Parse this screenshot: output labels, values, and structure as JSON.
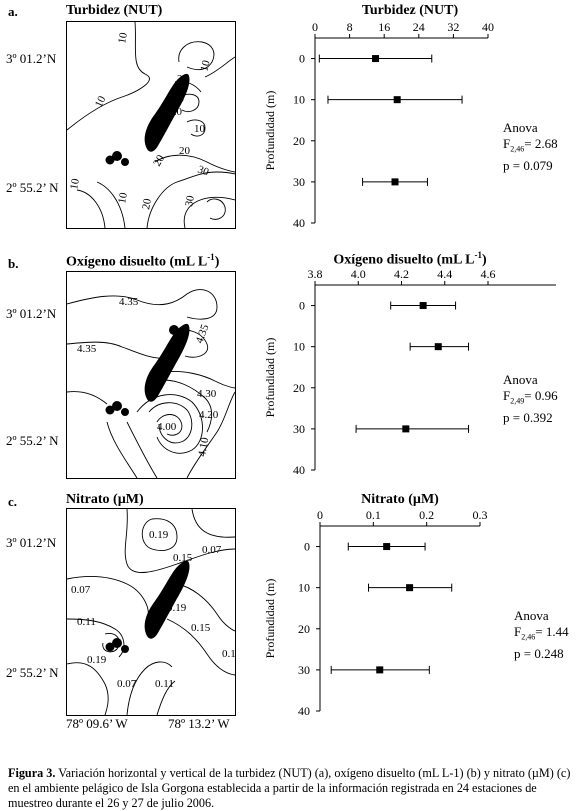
{
  "panels": [
    {
      "label": "a.",
      "map_title": "Turbidez (NUT)",
      "lat_north": "3º 01.2’N",
      "lat_south": "2º 55.2’ N",
      "contour_labels": [
        "10",
        "10",
        "10",
        "10",
        "20",
        "30",
        "20",
        "10",
        "20",
        "20",
        "30",
        "10",
        "20",
        "30"
      ],
      "chart_title": "Turbidez (NUT)",
      "ylabel": "Profundidad (m)",
      "anova": {
        "title": "Anova",
        "f_prefix": "F",
        "f_sub": "2,46",
        "f_value": "= 2.68",
        "p": "p = 0.079"
      }
    },
    {
      "label": "b.",
      "map_title": "Oxígeno disuelto (mL L",
      "map_title_sup": "-1",
      "map_title_end": ")",
      "lat_north": "3º 01.2’N",
      "lat_south": "2º 55.2’ N",
      "contour_labels": [
        "4.35",
        "4.35",
        "4.35",
        "4.30",
        "4.20",
        "4.00",
        "4.10"
      ],
      "chart_title": "Oxígeno disuelto (mL L",
      "chart_title_sup": "-1",
      "chart_title_end": ")",
      "ylabel": "Profundidad (m)",
      "anova": {
        "title": "Anova",
        "f_prefix": "F",
        "f_sub": "2,49",
        "f_value": "= 0.96",
        "p": "p = 0.392"
      }
    },
    {
      "label": "c.",
      "map_title": "Nitrato (µM)",
      "lat_north": "3º 01.2’N",
      "lat_south": "2º 55.2’ N",
      "lon_west": "78º 09.6’ W",
      "lon_east": "78º 13.2’ W",
      "contour_labels": [
        "0.19",
        "0.15",
        "0.07",
        "0.07",
        "0.19",
        "0.11",
        "0.15",
        "0.19",
        "0.07",
        "0.11",
        "0.19"
      ],
      "chart_title": "Nitrato (µM)",
      "ylabel": "Profundidad (m)",
      "anova": {
        "title": "Anova",
        "f_prefix": "F",
        "f_sub": "2,46",
        "f_value": "= 1.44",
        "p": "p = 0.248"
      }
    }
  ],
  "chart_data": [
    {
      "type": "scatter",
      "title": "Turbidez (NUT)",
      "ylabel": "Profundidad (m)",
      "x_ticks": [
        "0",
        "8",
        "16",
        "24",
        "32",
        "40"
      ],
      "y_ticks": [
        "0",
        "10",
        "20",
        "30",
        "40"
      ],
      "xlim": [
        0,
        40
      ],
      "ylim": [
        40,
        -5
      ],
      "points": [
        {
          "depth": 0,
          "mean": 14,
          "err_low": 1,
          "err_high": 27
        },
        {
          "depth": 10,
          "mean": 19,
          "err_low": 3,
          "err_high": 34
        },
        {
          "depth": 30,
          "mean": 18.5,
          "err_low": 11,
          "err_high": 26
        }
      ]
    },
    {
      "type": "scatter",
      "title": "Oxígeno disuelto (mL L-1)",
      "ylabel": "Profundidad (m)",
      "x_ticks": [
        "3.8",
        "4.0",
        "4.2",
        "4.4",
        "4.6"
      ],
      "y_ticks": [
        "0",
        "10",
        "20",
        "30",
        "40"
      ],
      "xlim": [
        3.8,
        4.6
      ],
      "ylim": [
        40,
        -5
      ],
      "points": [
        {
          "depth": 0,
          "mean": 4.3,
          "err_low": 4.15,
          "err_high": 4.45
        },
        {
          "depth": 10,
          "mean": 4.37,
          "err_low": 4.24,
          "err_high": 4.51
        },
        {
          "depth": 30,
          "mean": 4.22,
          "err_low": 3.99,
          "err_high": 4.51
        }
      ]
    },
    {
      "type": "scatter",
      "title": "Nitrato (µM)",
      "ylabel": "Profundidad (m)",
      "x_ticks": [
        "0",
        "0.1",
        "0.2",
        "0.3"
      ],
      "y_ticks": [
        "0",
        "10",
        "20",
        "30",
        "40"
      ],
      "xlim": [
        0,
        0.3
      ],
      "ylim": [
        40,
        -5
      ],
      "points": [
        {
          "depth": 0,
          "mean": 0.125,
          "err_low": 0.053,
          "err_high": 0.197
        },
        {
          "depth": 10,
          "mean": 0.168,
          "err_low": 0.091,
          "err_high": 0.247
        },
        {
          "depth": 30,
          "mean": 0.112,
          "err_low": 0.021,
          "err_high": 0.205
        }
      ]
    }
  ],
  "caption": {
    "label": "Figura 3.",
    "text": " Variación horizontal y vertical de la turbidez (NUT) (a), oxígeno disuelto (mL L-1) (b) y nitrato (µM) (c) en el ambiente pelágico de Isla Gorgona establecida a partir de la información registrada en 24 estaciones de muestreo durante el 26 y 27 de julio 2006."
  }
}
